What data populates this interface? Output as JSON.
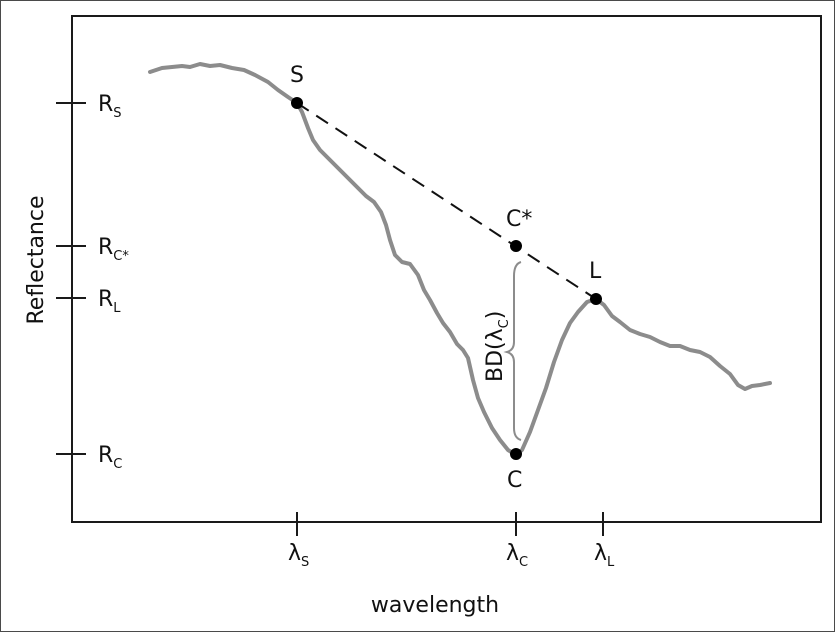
{
  "axes": {
    "y_title": "Reflectance",
    "x_title": "wavelength"
  },
  "y_ticks": {
    "rs": {
      "main": "R",
      "sub": "S"
    },
    "rcstar": {
      "main": "R",
      "sub": "C*"
    },
    "rl": {
      "main": "R",
      "sub": "L"
    },
    "rc": {
      "main": "R",
      "sub": "C"
    }
  },
  "x_ticks": {
    "ls": {
      "main": "λ",
      "sub": "S"
    },
    "lc": {
      "main": "λ",
      "sub": "C"
    },
    "ll": {
      "main": "λ",
      "sub": "L"
    }
  },
  "points": {
    "s": "S",
    "cstar": "C*",
    "l": "L",
    "c": "C"
  },
  "band_depth": {
    "prefix": "BD(λ",
    "sub": "C",
    "suffix": ")"
  },
  "colors": {
    "curve": "#8c8c8c",
    "axes": "#1a1a1a",
    "points": "#000000",
    "dashed": "#111111"
  }
}
